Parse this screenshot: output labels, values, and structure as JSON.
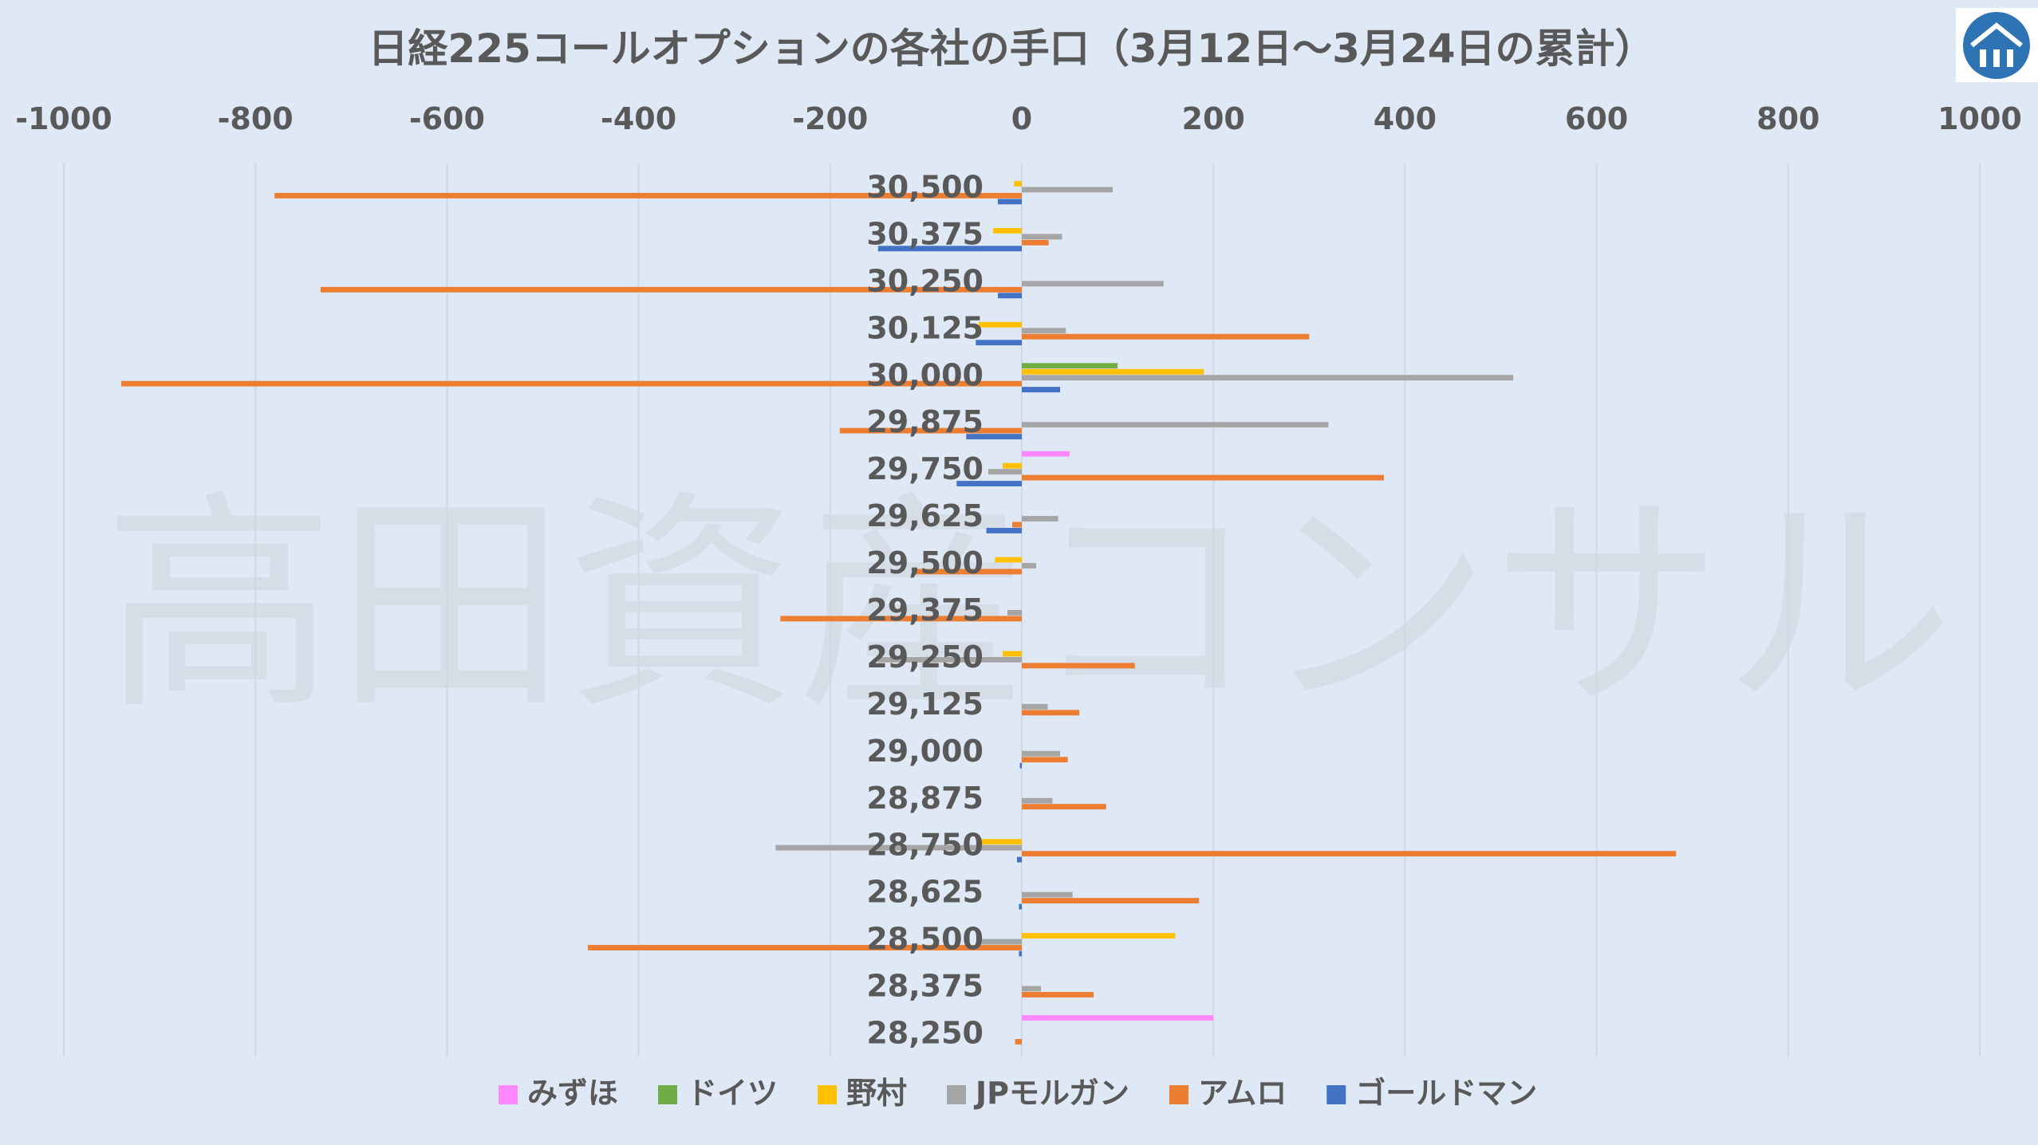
{
  "chart_data": {
    "type": "bar",
    "orientation": "horizontal",
    "title": "日経225コールオプションの各社の手口（3月12日～3月24日の累計）",
    "xlabel": "",
    "ylabel": "",
    "xlim": [
      -1000,
      1000
    ],
    "x_ticks": [
      "-1000",
      "-800",
      "-600",
      "-400",
      "-200",
      "0",
      "200",
      "400",
      "600",
      "800",
      "1000"
    ],
    "grid": "vertical",
    "legend_position": "bottom",
    "categories": [
      "30,500",
      "30,375",
      "30,250",
      "30,125",
      "30,000",
      "29,875",
      "29,750",
      "29,625",
      "29,500",
      "29,375",
      "29,250",
      "29,125",
      "29,000",
      "28,875",
      "28,750",
      "28,625",
      "28,500",
      "28,375",
      "28,250"
    ],
    "series": [
      {
        "name": "みずほ",
        "color": "#ff88ff",
        "values": [
          0,
          0,
          0,
          0,
          0,
          0,
          50,
          0,
          0,
          0,
          0,
          0,
          0,
          0,
          0,
          0,
          0,
          0,
          200
        ]
      },
      {
        "name": "ドイツ",
        "color": "#70ad47",
        "values": [
          0,
          0,
          0,
          0,
          100,
          0,
          0,
          0,
          0,
          0,
          0,
          0,
          0,
          0,
          0,
          0,
          0,
          0,
          0
        ]
      },
      {
        "name": "野村",
        "color": "#ffc000",
        "values": [
          -8,
          -30,
          0,
          -45,
          190,
          0,
          -20,
          0,
          -28,
          0,
          -20,
          0,
          0,
          0,
          -45,
          0,
          160,
          0,
          0
        ]
      },
      {
        "name": "JPモルガン",
        "color": "#a5a5a5",
        "values": [
          95,
          42,
          148,
          46,
          513,
          320,
          -35,
          38,
          15,
          -15,
          -150,
          27,
          40,
          32,
          -257,
          53,
          -45,
          20,
          0
        ]
      },
      {
        "name": "アムロ",
        "color": "#ed7d31",
        "values": [
          -780,
          28,
          -732,
          300,
          -940,
          -190,
          378,
          -10,
          -112,
          -252,
          118,
          60,
          48,
          88,
          683,
          185,
          -453,
          75,
          -7
        ]
      },
      {
        "name": "ゴールドマン",
        "color": "#4472c4",
        "values": [
          -25,
          -150,
          -25,
          -48,
          40,
          -58,
          -68,
          -37,
          0,
          0,
          0,
          0,
          -2,
          0,
          -5,
          -3,
          -3,
          0,
          0
        ]
      }
    ]
  },
  "watermark": "高田資産コンサル",
  "logo": {
    "icon": "house-logo-icon"
  }
}
